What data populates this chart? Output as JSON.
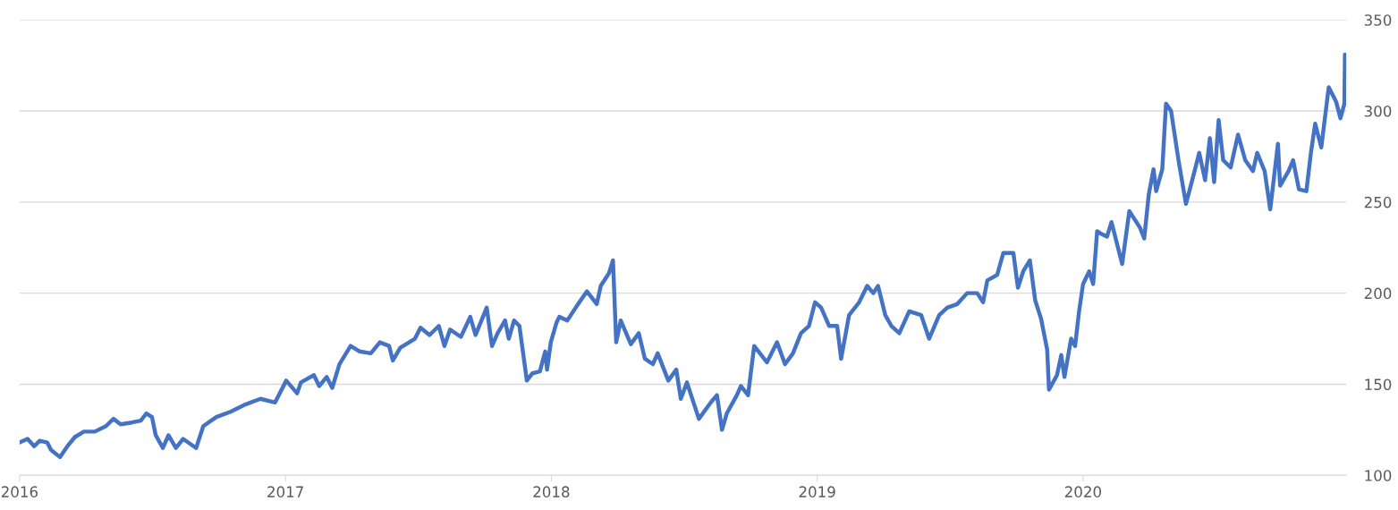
{
  "chart_data": {
    "type": "line",
    "x": [
      2016.0,
      2016.03,
      2016.055,
      2016.076,
      2016.104,
      2016.118,
      2016.152,
      2016.18,
      2016.208,
      2016.242,
      2016.283,
      2016.325,
      2016.353,
      2016.38,
      2016.422,
      2016.456,
      2016.477,
      2016.498,
      2016.512,
      2016.539,
      2016.56,
      2016.588,
      2016.615,
      2016.664,
      2016.691,
      2016.74,
      2016.795,
      2016.851,
      2016.906,
      2016.961,
      2017.003,
      2017.044,
      2017.058,
      2017.107,
      2017.127,
      2017.155,
      2017.176,
      2017.203,
      2017.245,
      2017.279,
      2017.321,
      2017.355,
      2017.39,
      2017.404,
      2017.432,
      2017.487,
      2017.508,
      2017.542,
      2017.577,
      2017.598,
      2017.619,
      2017.66,
      2017.695,
      2017.715,
      2017.757,
      2017.777,
      2017.798,
      2017.826,
      2017.84,
      2017.86,
      2017.88,
      2017.908,
      2017.929,
      2017.957,
      2017.977,
      2017.984,
      2017.998,
      2018.02,
      2018.03,
      2018.06,
      2018.096,
      2018.134,
      2018.171,
      2018.186,
      2018.217,
      2018.232,
      2018.244,
      2018.261,
      2018.299,
      2018.329,
      2018.352,
      2018.382,
      2018.4,
      2018.44,
      2018.47,
      2018.487,
      2018.51,
      2018.555,
      2018.6,
      2018.623,
      2018.642,
      2018.66,
      2018.698,
      2018.713,
      2018.74,
      2018.763,
      2018.811,
      2018.849,
      2018.879,
      2018.909,
      2018.939,
      2018.969,
      2018.992,
      2019.015,
      2019.045,
      2019.075,
      2019.09,
      2019.12,
      2019.158,
      2019.188,
      2019.211,
      2019.229,
      2019.256,
      2019.279,
      2019.309,
      2019.346,
      2019.391,
      2019.421,
      2019.459,
      2019.489,
      2019.527,
      2019.564,
      2019.602,
      2019.624,
      2019.64,
      2019.677,
      2019.7,
      2019.738,
      2019.755,
      2019.775,
      2019.8,
      2019.82,
      2019.842,
      2019.865,
      2019.872,
      2019.902,
      2019.918,
      2019.93,
      2019.955,
      2019.97,
      2019.985,
      2020.0,
      2020.023,
      2020.038,
      2020.053,
      2020.063,
      2020.09,
      2020.107,
      2020.147,
      2020.174,
      2020.214,
      2020.23,
      2020.247,
      2020.265,
      2020.275,
      2020.298,
      2020.312,
      2020.331,
      2020.36,
      2020.387,
      2020.414,
      2020.437,
      2020.459,
      2020.477,
      2020.493,
      2020.51,
      2020.527,
      2020.555,
      2020.583,
      2020.61,
      2020.639,
      2020.655,
      2020.683,
      2020.704,
      2020.733,
      2020.741,
      2020.773,
      2020.79,
      2020.812,
      2020.84,
      2020.857,
      2020.873,
      2020.896,
      2020.924,
      2020.952,
      2020.968,
      2020.983,
      2020.985
    ],
    "series": [
      {
        "color": "#4472c4",
        "values": [
          118,
          120,
          116,
          119,
          118,
          114,
          110,
          116,
          121,
          124,
          124,
          127,
          131,
          128,
          129,
          130,
          134,
          132,
          122,
          115,
          122,
          115,
          120,
          115,
          127,
          132,
          135,
          139,
          142,
          140,
          152,
          145,
          151,
          155,
          149,
          154,
          148,
          161,
          171,
          168,
          167,
          173,
          171,
          163,
          170,
          175,
          181,
          177,
          182,
          171,
          180,
          176,
          187,
          177,
          192,
          171,
          178,
          185,
          175,
          185,
          182,
          152,
          156,
          157,
          168,
          158,
          173,
          184,
          187,
          185,
          193,
          201,
          194,
          204,
          211,
          218,
          173,
          185,
          172,
          178,
          164,
          161,
          167,
          152,
          158,
          142,
          151,
          131,
          140,
          144,
          125,
          134,
          144,
          149,
          144,
          171,
          162,
          173,
          161,
          167,
          178,
          182,
          195,
          192,
          182,
          182,
          164,
          188,
          195,
          204,
          200,
          204,
          188,
          182,
          178,
          190,
          188,
          175,
          188,
          192,
          194,
          200,
          200,
          195,
          207,
          210,
          222,
          222,
          203,
          212,
          218,
          196,
          186,
          169,
          147,
          155,
          166,
          154,
          175,
          171,
          190,
          205,
          212,
          205,
          234,
          233,
          231,
          239,
          216,
          245,
          236,
          230,
          254,
          268,
          256,
          268,
          304,
          300,
          272,
          249,
          264,
          277,
          262,
          285,
          261,
          295,
          273,
          269,
          287,
          273,
          267,
          277,
          267,
          246,
          282,
          259,
          267,
          273,
          257,
          256,
          277,
          293,
          280,
          313,
          305,
          296,
          304,
          331
        ]
      }
    ],
    "xlim": [
      2016,
      2020.99
    ],
    "xticks": [
      2016,
      2017,
      2018,
      2019,
      2020
    ],
    "ylim": [
      100,
      350
    ],
    "yticks": [
      100,
      150,
      200,
      250,
      300,
      350
    ],
    "grid": "y"
  }
}
